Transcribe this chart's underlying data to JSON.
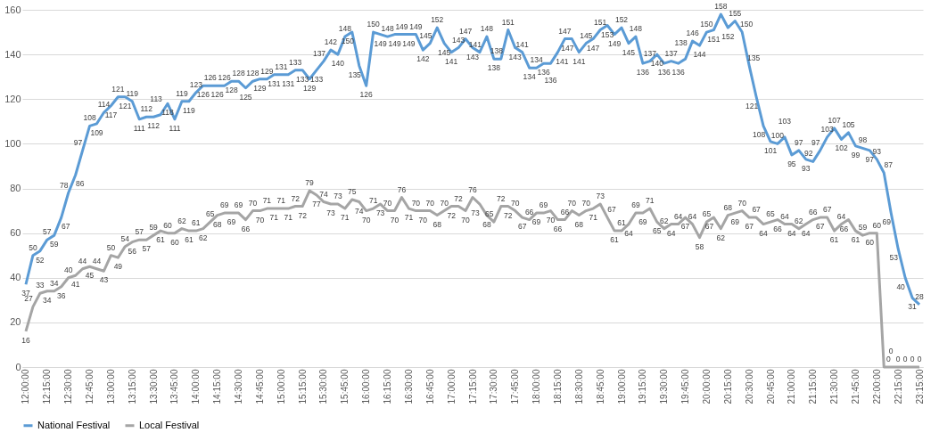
{
  "chart_data": {
    "type": "line",
    "categories": [
      "12:00:00",
      null,
      null,
      "12:15:00",
      null,
      null,
      "12:30:00",
      null,
      null,
      "12:45:00",
      null,
      null,
      "13:00:00",
      null,
      null,
      "13:15:00",
      null,
      null,
      "13:30:00",
      null,
      null,
      "13:45:00",
      null,
      null,
      "14:00:00",
      null,
      null,
      "14:15:00",
      null,
      null,
      "14:30:00",
      null,
      null,
      "14:45:00",
      null,
      null,
      "15:00:00",
      null,
      null,
      "15:15:00",
      null,
      null,
      "15:30:00",
      null,
      null,
      "15:45:00",
      null,
      null,
      "16:00:00",
      null,
      null,
      "16:15:00",
      null,
      null,
      "16:30:00",
      null,
      null,
      "16:45:00",
      null,
      null,
      "17:00:00",
      null,
      null,
      "17:15:00",
      null,
      null,
      "17:30:00",
      null,
      null,
      "17:45:00",
      null,
      null,
      "18:00:00",
      null,
      null,
      "18:15:00",
      null,
      null,
      "18:30:00",
      null,
      null,
      "18:45:00",
      null,
      null,
      "19:00:00",
      null,
      null,
      "19:15:00",
      null,
      null,
      "19:30:00",
      null,
      null,
      "19:45:00",
      null,
      null,
      "20:00:00",
      null,
      null,
      "20:15:00",
      null,
      null,
      "20:30:00",
      null,
      null,
      "20:45:00",
      null,
      null,
      "21:00:00",
      null,
      null,
      "21:15:00",
      null,
      null,
      "21:30:00",
      null,
      null,
      "21:45:00",
      null,
      null,
      "22:00:00",
      null,
      null,
      "22:15:00",
      null,
      null,
      "23:15:00"
    ],
    "series": [
      {
        "name": "National Festival",
        "color": "#5b9bd5",
        "values": [
          37,
          50,
          52,
          57,
          59,
          67,
          78,
          86,
          97,
          108,
          109,
          114,
          117,
          121,
          121,
          119,
          111,
          112,
          112,
          113,
          118,
          111,
          119,
          119,
          123,
          126,
          126,
          126,
          126,
          128,
          128,
          125,
          128,
          129,
          129,
          131,
          131,
          131,
          133,
          133,
          129,
          133,
          137,
          142,
          140,
          148,
          150,
          135,
          126,
          150,
          149,
          148,
          149,
          149,
          149,
          149,
          142,
          145,
          152,
          145,
          141,
          143,
          147,
          143,
          141,
          148,
          138,
          138,
          151,
          143,
          141,
          134,
          134,
          136,
          136,
          141,
          147,
          147,
          141,
          145,
          147,
          151,
          153,
          149,
          152,
          145,
          148,
          136,
          137,
          140,
          136,
          137,
          136,
          138,
          146,
          144,
          150,
          151,
          158,
          152,
          155,
          150,
          135,
          121,
          108,
          101,
          100,
          103,
          95,
          97,
          93,
          92,
          97,
          103,
          107,
          102,
          105,
          99,
          98,
          97,
          93,
          87,
          69,
          53,
          40,
          31,
          28
        ]
      },
      {
        "name": "Local Festival",
        "color": "#a5a5a5",
        "values": [
          16,
          27,
          33,
          34,
          34,
          36,
          40,
          41,
          44,
          45,
          44,
          43,
          50,
          49,
          54,
          56,
          57,
          57,
          59,
          61,
          60,
          60,
          62,
          61,
          61,
          62,
          65,
          68,
          69,
          69,
          69,
          66,
          70,
          70,
          71,
          71,
          71,
          71,
          72,
          72,
          79,
          77,
          74,
          73,
          73,
          71,
          75,
          74,
          70,
          71,
          73,
          70,
          70,
          76,
          71,
          70,
          70,
          70,
          68,
          70,
          72,
          72,
          70,
          76,
          73,
          68,
          65,
          72,
          72,
          70,
          67,
          66,
          69,
          69,
          70,
          66,
          66,
          70,
          68,
          70,
          71,
          73,
          67,
          61,
          61,
          64,
          69,
          69,
          71,
          65,
          62,
          64,
          64,
          67,
          64,
          58,
          65,
          67,
          62,
          68,
          69,
          70,
          67,
          67,
          64,
          65,
          66,
          64,
          64,
          62,
          64,
          66,
          67,
          67,
          61,
          64,
          66,
          61,
          59,
          60,
          60,
          0,
          0,
          0,
          0,
          0,
          0
        ]
      }
    ],
    "ylim": [
      0,
      160
    ],
    "yticks": [
      0,
      20,
      40,
      60,
      80,
      100,
      120,
      140,
      160
    ],
    "grid": "y",
    "legend": "bottom",
    "data_labels": true
  }
}
